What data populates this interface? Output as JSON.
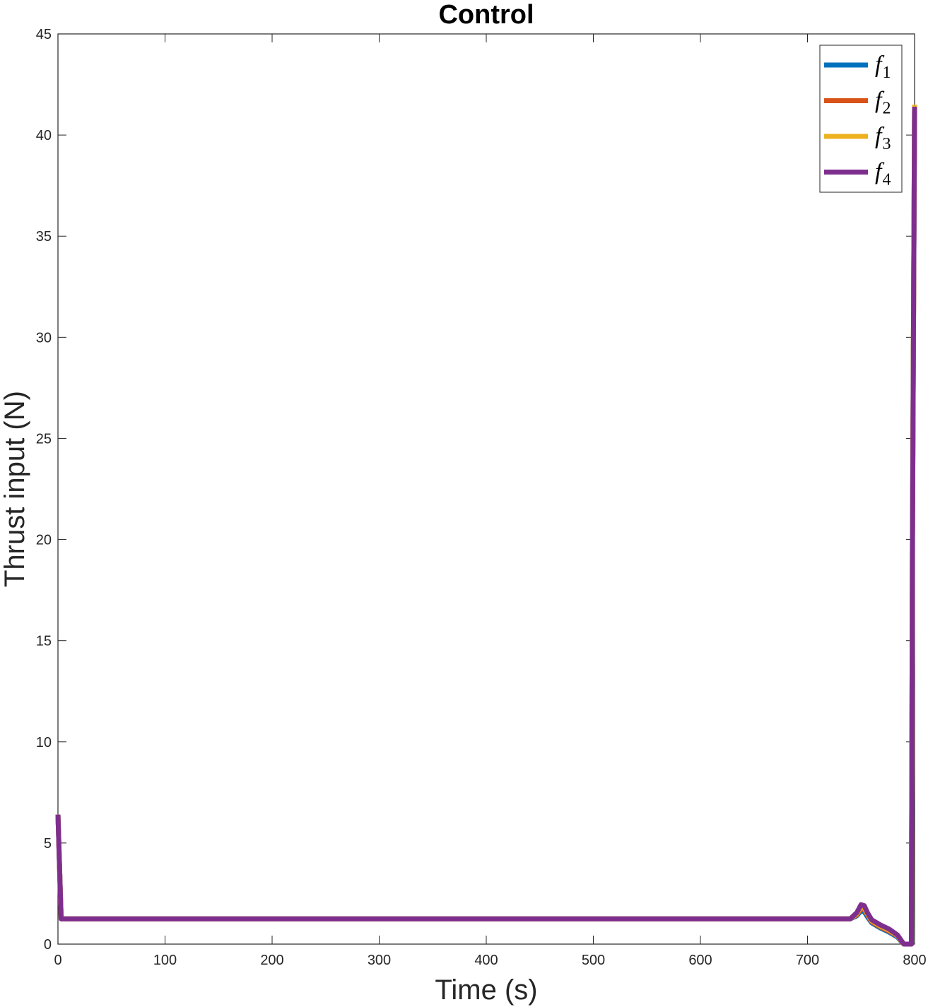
{
  "chart_data": {
    "type": "line",
    "title": "Control",
    "xlabel": "Time (s)",
    "ylabel": "Thrust input (N)",
    "xlim": [
      0,
      800
    ],
    "ylim": [
      0,
      45
    ],
    "xticks": [
      0,
      100,
      200,
      300,
      400,
      500,
      600,
      700,
      800
    ],
    "yticks": [
      0,
      5,
      10,
      15,
      20,
      25,
      30,
      35,
      40,
      45
    ],
    "grid": false,
    "legend_position": "top-right",
    "series": [
      {
        "name": "f",
        "subscript": "1",
        "color": "#0072BD",
        "x": [
          0,
          3,
          100,
          200,
          300,
          400,
          500,
          600,
          700,
          740,
          746,
          750,
          753,
          756,
          760,
          768,
          776,
          784,
          788,
          790,
          792,
          795,
          797,
          798,
          800
        ],
        "y": [
          6.4,
          1.25,
          1.25,
          1.25,
          1.25,
          1.25,
          1.25,
          1.25,
          1.25,
          1.25,
          1.4,
          1.65,
          1.6,
          1.35,
          1.05,
          0.8,
          0.6,
          0.35,
          0.1,
          0,
          0,
          0,
          0,
          20,
          41.3
        ]
      },
      {
        "name": "f",
        "subscript": "2",
        "color": "#D95319",
        "x": [
          0,
          3,
          100,
          200,
          300,
          400,
          500,
          600,
          700,
          740,
          746,
          750,
          753,
          756,
          760,
          768,
          776,
          784,
          788,
          790,
          792,
          795,
          797,
          798,
          800
        ],
        "y": [
          6.4,
          1.25,
          1.25,
          1.25,
          1.25,
          1.25,
          1.25,
          1.25,
          1.25,
          1.25,
          1.45,
          1.75,
          1.7,
          1.45,
          1.1,
          0.85,
          0.65,
          0.4,
          0.12,
          0,
          0,
          0,
          0,
          20,
          41.4
        ]
      },
      {
        "name": "f",
        "subscript": "3",
        "color": "#EDB120",
        "x": [
          0,
          3,
          100,
          200,
          300,
          400,
          500,
          600,
          700,
          740,
          746,
          750,
          753,
          756,
          760,
          768,
          776,
          784,
          788,
          790,
          792,
          795,
          797,
          798,
          800
        ],
        "y": [
          6.4,
          1.25,
          1.25,
          1.25,
          1.25,
          1.25,
          1.25,
          1.25,
          1.25,
          1.25,
          1.5,
          1.85,
          1.8,
          1.5,
          1.15,
          0.9,
          0.7,
          0.42,
          0.13,
          0,
          0,
          0,
          0,
          20,
          41.5
        ]
      },
      {
        "name": "f",
        "subscript": "4",
        "color": "#7E2F8E",
        "x": [
          0,
          3,
          100,
          200,
          300,
          400,
          500,
          600,
          700,
          740,
          746,
          750,
          753,
          756,
          760,
          768,
          776,
          784,
          788,
          790,
          792,
          795,
          797,
          798,
          800
        ],
        "y": [
          6.4,
          1.25,
          1.25,
          1.25,
          1.25,
          1.25,
          1.25,
          1.25,
          1.25,
          1.25,
          1.55,
          1.95,
          1.9,
          1.55,
          1.2,
          0.95,
          0.75,
          0.45,
          0.15,
          0,
          0,
          0,
          0,
          20,
          41.4
        ]
      }
    ]
  }
}
